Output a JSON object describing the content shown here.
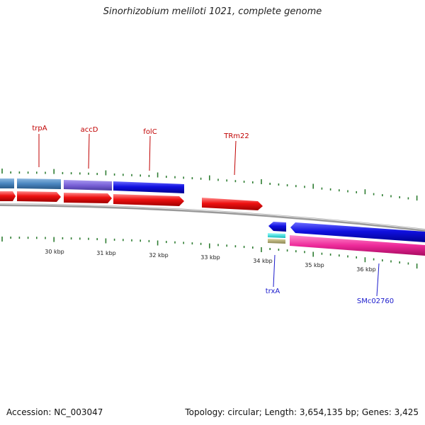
{
  "title": "Sinorhizobium meliloti 1021, complete genome",
  "footer": {
    "accession": "Accession: NC_003047",
    "summary": "Topology: circular; Length: 3,654,135 bp; Genes: 3,425"
  },
  "colors": {
    "forward_label": "#c00000",
    "reverse_label": "#1a1acc",
    "tick": "#2e7d32",
    "backbone": "#8a8a8a",
    "red_feature": "#ee1111",
    "blue_feature": "#1010e0",
    "steel_feature": "#4a86c0",
    "violet_feature": "#7a62d8",
    "pink_feature": "#ee2a9a",
    "cyan_feature": "#22dddd",
    "olive_feature": "#b8b070"
  },
  "scale_labels": [
    "30 kbp",
    "31 kbp",
    "32 kbp",
    "33 kbp",
    "34 kbp",
    "35 kbp",
    "36 kbp"
  ],
  "gene_labels": {
    "forward": [
      "trpA",
      "accD",
      "folC",
      "TRm22"
    ],
    "reverse": [
      "trxA",
      "SMc02760"
    ]
  }
}
